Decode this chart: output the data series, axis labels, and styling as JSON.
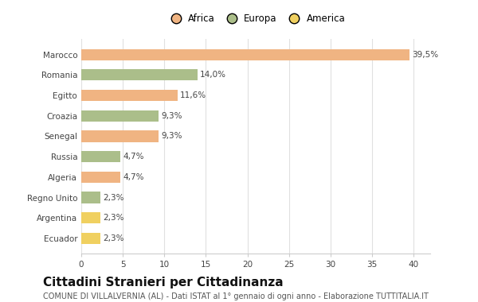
{
  "countries": [
    "Marocco",
    "Romania",
    "Egitto",
    "Croazia",
    "Senegal",
    "Russia",
    "Algeria",
    "Regno Unito",
    "Argentina",
    "Ecuador"
  ],
  "values": [
    39.5,
    14.0,
    11.6,
    9.3,
    9.3,
    4.7,
    4.7,
    2.3,
    2.3,
    2.3
  ],
  "labels": [
    "39,5%",
    "14,0%",
    "11,6%",
    "9,3%",
    "9,3%",
    "4,7%",
    "4,7%",
    "2,3%",
    "2,3%",
    "2,3%"
  ],
  "colors": [
    "#F0B482",
    "#ABBE8A",
    "#F0B482",
    "#ABBE8A",
    "#F0B482",
    "#ABBE8A",
    "#F0B482",
    "#ABBE8A",
    "#F0D060",
    "#F0D060"
  ],
  "legend_labels": [
    "Africa",
    "Europa",
    "America"
  ],
  "legend_colors": [
    "#F0B482",
    "#ABBE8A",
    "#F0D060"
  ],
  "title": "Cittadini Stranieri per Cittadinanza",
  "subtitle": "COMUNE DI VILLALVERNIA (AL) - Dati ISTAT al 1° gennaio di ogni anno - Elaborazione TUTTITALIA.IT",
  "xlim": [
    0,
    42
  ],
  "xticks": [
    0,
    5,
    10,
    15,
    20,
    25,
    30,
    35,
    40
  ],
  "background_color": "#ffffff",
  "grid_color": "#e0e0e0",
  "bar_height": 0.55,
  "title_fontsize": 11,
  "subtitle_fontsize": 7,
  "label_fontsize": 7.5,
  "tick_fontsize": 7.5,
  "ytick_fontsize": 7.5
}
